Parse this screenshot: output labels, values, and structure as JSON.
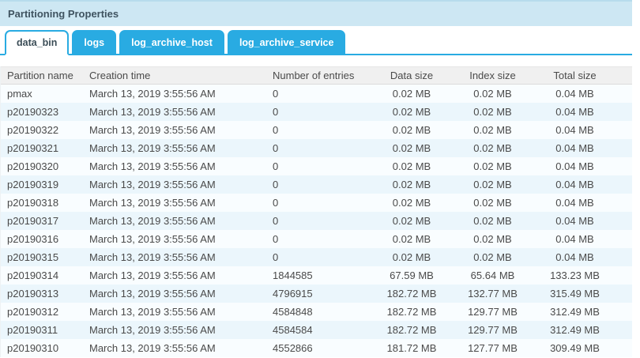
{
  "panel": {
    "title": "Partitioning Properties"
  },
  "tabs": [
    {
      "label": "data_bin",
      "active": true
    },
    {
      "label": "logs",
      "active": false
    },
    {
      "label": "log_archive_host",
      "active": false
    },
    {
      "label": "log_archive_service",
      "active": false
    }
  ],
  "table": {
    "columns": [
      "Partition name",
      "Creation time",
      "Number of entries",
      "Data size",
      "Index size",
      "Total size"
    ],
    "column_keys": [
      "partition-name",
      "creation-time",
      "number-of-entries",
      "data-size",
      "index-size",
      "total-size"
    ],
    "rows": [
      [
        "pmax",
        "March 13, 2019 3:55:56 AM",
        "0",
        "0.02 MB",
        "0.02 MB",
        "0.04 MB"
      ],
      [
        "p20190323",
        "March 13, 2019 3:55:56 AM",
        "0",
        "0.02 MB",
        "0.02 MB",
        "0.04 MB"
      ],
      [
        "p20190322",
        "March 13, 2019 3:55:56 AM",
        "0",
        "0.02 MB",
        "0.02 MB",
        "0.04 MB"
      ],
      [
        "p20190321",
        "March 13, 2019 3:55:56 AM",
        "0",
        "0.02 MB",
        "0.02 MB",
        "0.04 MB"
      ],
      [
        "p20190320",
        "March 13, 2019 3:55:56 AM",
        "0",
        "0.02 MB",
        "0.02 MB",
        "0.04 MB"
      ],
      [
        "p20190319",
        "March 13, 2019 3:55:56 AM",
        "0",
        "0.02 MB",
        "0.02 MB",
        "0.04 MB"
      ],
      [
        "p20190318",
        "March 13, 2019 3:55:56 AM",
        "0",
        "0.02 MB",
        "0.02 MB",
        "0.04 MB"
      ],
      [
        "p20190317",
        "March 13, 2019 3:55:56 AM",
        "0",
        "0.02 MB",
        "0.02 MB",
        "0.04 MB"
      ],
      [
        "p20190316",
        "March 13, 2019 3:55:56 AM",
        "0",
        "0.02 MB",
        "0.02 MB",
        "0.04 MB"
      ],
      [
        "p20190315",
        "March 13, 2019 3:55:56 AM",
        "0",
        "0.02 MB",
        "0.02 MB",
        "0.04 MB"
      ],
      [
        "p20190314",
        "March 13, 2019 3:55:56 AM",
        "1844585",
        "67.59 MB",
        "65.64 MB",
        "133.23 MB"
      ],
      [
        "p20190313",
        "March 13, 2019 3:55:56 AM",
        "4796915",
        "182.72 MB",
        "132.77 MB",
        "315.49 MB"
      ],
      [
        "p20190312",
        "March 13, 2019 3:55:56 AM",
        "4584848",
        "182.72 MB",
        "129.77 MB",
        "312.49 MB"
      ],
      [
        "p20190311",
        "March 13, 2019 3:55:56 AM",
        "4584584",
        "182.72 MB",
        "129.77 MB",
        "312.49 MB"
      ],
      [
        "p20190310",
        "March 13, 2019 3:55:56 AM",
        "4552866",
        "181.72 MB",
        "127.77 MB",
        "309.49 MB"
      ]
    ]
  },
  "colors": {
    "accent_blue": "#29abe2",
    "titlebar_bg": "#cde7f3",
    "header_bg": "#f0f0f0",
    "row_bg": "#f9fdff",
    "row_alt_bg": "#ebf6fc"
  }
}
